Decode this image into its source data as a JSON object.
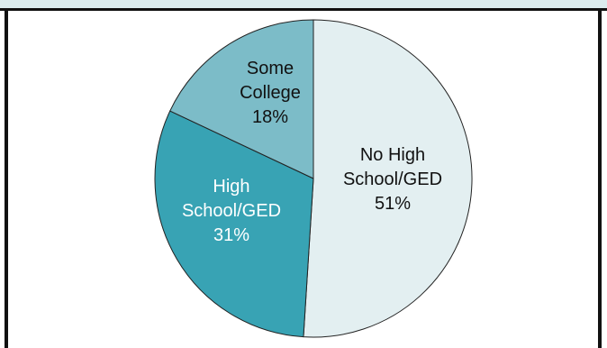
{
  "chart_data": {
    "type": "pie",
    "title": "",
    "slices": [
      {
        "label_lines": [
          "No High",
          "School/GED"
        ],
        "percent_label": "51%",
        "value": 51,
        "color": "#e3eff1",
        "text_color": "#111111"
      },
      {
        "label_lines": [
          "High",
          "School/GED"
        ],
        "percent_label": "31%",
        "value": 31,
        "color": "#38a3b4",
        "text_color": "#ffffff"
      },
      {
        "label_lines": [
          "Some",
          "College"
        ],
        "percent_label": "18%",
        "value": 18,
        "color": "#7cbcc8",
        "text_color": "#111111"
      }
    ]
  }
}
